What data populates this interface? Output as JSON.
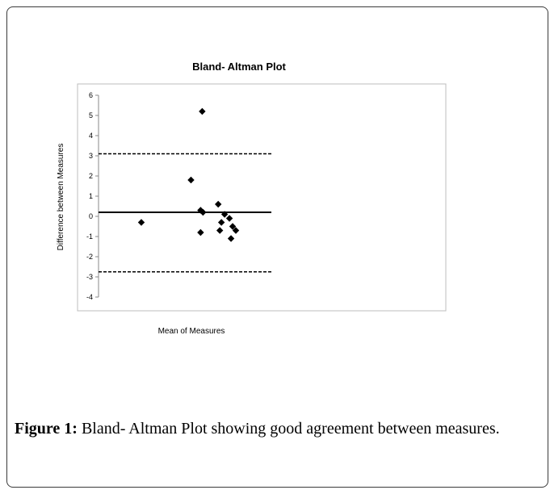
{
  "chart_data": {
    "type": "scatter",
    "title": "Bland- Altman Plot",
    "xlabel": "Mean of Measures",
    "ylabel": "Difference between Measures",
    "ylim": [
      -4,
      6
    ],
    "yticks": [
      "6",
      "5",
      "4",
      "3",
      "2",
      "1",
      "0",
      "-1",
      "-2",
      "-3",
      "-4"
    ],
    "xlim": [
      0,
      20
    ],
    "x_tick_labels_shown": false,
    "grid": false,
    "legend": "none",
    "marker": "diamond",
    "marker_color": "#000000",
    "points": [
      {
        "x": 2.5,
        "y": -0.3
      },
      {
        "x": 5.6,
        "y": 1.8
      },
      {
        "x": 6.2,
        "y": 0.3
      },
      {
        "x": 6.3,
        "y": 5.2
      },
      {
        "x": 6.35,
        "y": 0.2
      },
      {
        "x": 6.2,
        "y": -0.8
      },
      {
        "x": 7.3,
        "y": 0.6
      },
      {
        "x": 7.4,
        "y": -0.7
      },
      {
        "x": 7.5,
        "y": -0.3
      },
      {
        "x": 7.7,
        "y": 0.1
      },
      {
        "x": 8.0,
        "y": -0.1
      },
      {
        "x": 8.1,
        "y": -1.1
      },
      {
        "x": 8.2,
        "y": -0.5
      },
      {
        "x": 8.4,
        "y": -0.7
      }
    ],
    "reference_lines": [
      {
        "y": 0.2,
        "style": "solid"
      },
      {
        "y": 3.1,
        "style": "dashed"
      },
      {
        "y": -2.75,
        "style": "dashed"
      }
    ]
  },
  "caption": {
    "label": "Figure 1:",
    "text": " Bland- Altman Plot showing good agreement between measures."
  }
}
